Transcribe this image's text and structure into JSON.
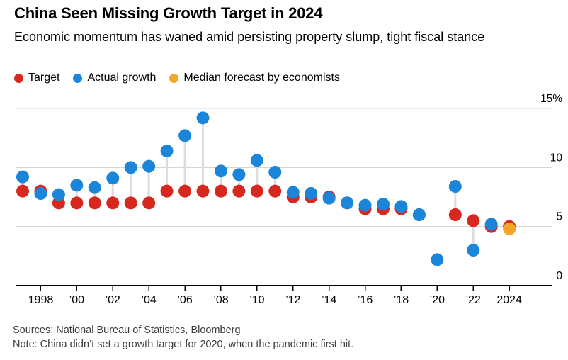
{
  "header": {
    "title": "China Seen Missing Growth Target in 2024",
    "subtitle": "Economic momentum has waned amid persisting property slump, tight fiscal stance"
  },
  "legend": [
    {
      "key": "target",
      "label": "Target",
      "color": "#d8271e"
    },
    {
      "key": "actual",
      "label": "Actual growth",
      "color": "#1b86d9"
    },
    {
      "key": "forecast",
      "label": "Median forecast by economists",
      "color": "#f5a62a"
    }
  ],
  "chart_data": {
    "type": "scatter",
    "title": "China Seen Missing Growth Target in 2024",
    "ylim": [
      0,
      15
    ],
    "grid": true,
    "legend_position": "top-left",
    "y_ticks": [
      {
        "value": 15,
        "label": "15%"
      },
      {
        "value": 10,
        "label": "10"
      },
      {
        "value": 5,
        "label": "5"
      },
      {
        "value": 0,
        "label": "0"
      }
    ],
    "x_ticks": [
      {
        "year": 1998,
        "label": "1998"
      },
      {
        "year": 2000,
        "label": "’00"
      },
      {
        "year": 2002,
        "label": "’02"
      },
      {
        "year": 2004,
        "label": "’04"
      },
      {
        "year": 2006,
        "label": "’06"
      },
      {
        "year": 2008,
        "label": "’08"
      },
      {
        "year": 2010,
        "label": "’10"
      },
      {
        "year": 2012,
        "label": "’12"
      },
      {
        "year": 2014,
        "label": "’14"
      },
      {
        "year": 2016,
        "label": "’16"
      },
      {
        "year": 2018,
        "label": "’18"
      },
      {
        "year": 2020,
        "label": "’20"
      },
      {
        "year": 2022,
        "label": "’22"
      },
      {
        "year": 2024,
        "label": "2024"
      }
    ],
    "rows": [
      {
        "year": 1997,
        "target": 8.0,
        "actual": 9.2
      },
      {
        "year": 1998,
        "target": 8.0,
        "actual": 7.8
      },
      {
        "year": 1999,
        "target": 7.0,
        "actual": 7.7
      },
      {
        "year": 2000,
        "target": 7.0,
        "actual": 8.5
      },
      {
        "year": 2001,
        "target": 7.0,
        "actual": 8.3
      },
      {
        "year": 2002,
        "target": 7.0,
        "actual": 9.1
      },
      {
        "year": 2003,
        "target": 7.0,
        "actual": 10.0
      },
      {
        "year": 2004,
        "target": 7.0,
        "actual": 10.1
      },
      {
        "year": 2005,
        "target": 8.0,
        "actual": 11.4
      },
      {
        "year": 2006,
        "target": 8.0,
        "actual": 12.7
      },
      {
        "year": 2007,
        "target": 8.0,
        "actual": 14.2
      },
      {
        "year": 2008,
        "target": 8.0,
        "actual": 9.7
      },
      {
        "year": 2009,
        "target": 8.0,
        "actual": 9.4
      },
      {
        "year": 2010,
        "target": 8.0,
        "actual": 10.6
      },
      {
        "year": 2011,
        "target": 8.0,
        "actual": 9.6
      },
      {
        "year": 2012,
        "target": 7.5,
        "actual": 7.9
      },
      {
        "year": 2013,
        "target": 7.5,
        "actual": 7.8
      },
      {
        "year": 2014,
        "target": 7.5,
        "actual": 7.4
      },
      {
        "year": 2015,
        "target": 7.0,
        "actual": 7.0
      },
      {
        "year": 2016,
        "target": 6.5,
        "actual": 6.8
      },
      {
        "year": 2017,
        "target": 6.5,
        "actual": 6.9
      },
      {
        "year": 2018,
        "target": 6.5,
        "actual": 6.7
      },
      {
        "year": 2019,
        "target": 6.0,
        "actual": 6.0
      },
      {
        "year": 2020,
        "target": null,
        "actual": 2.2
      },
      {
        "year": 2021,
        "target": 6.0,
        "actual": 8.4
      },
      {
        "year": 2022,
        "target": 5.5,
        "actual": 3.0
      },
      {
        "year": 2023,
        "target": 5.0,
        "actual": 5.2
      },
      {
        "year": 2024,
        "target": 5.0,
        "forecast": 4.8
      }
    ]
  },
  "footer": {
    "sources": "Sources: National Bureau of Statistics, Bloomberg",
    "note": "Note: China didn’t set a growth target for 2020, when the pandemic first hit."
  }
}
